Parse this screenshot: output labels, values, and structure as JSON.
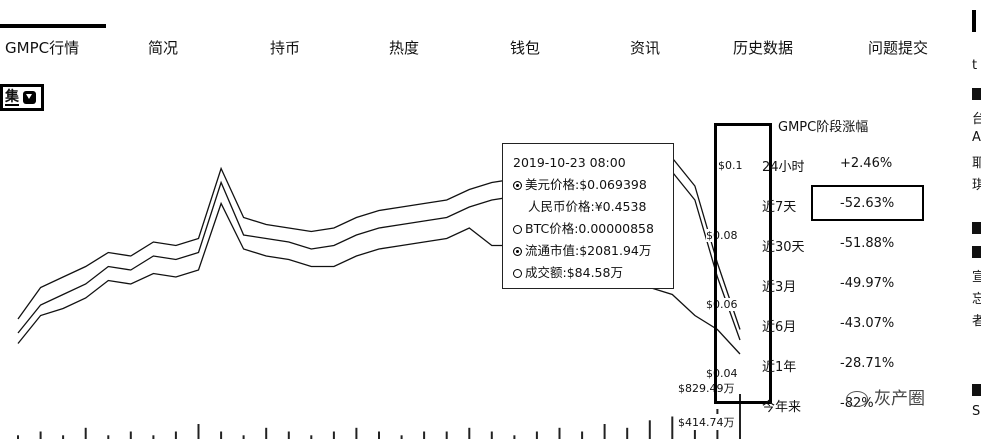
{
  "tabs": [
    "GMPC行情",
    "简况",
    "持币",
    "热度",
    "钱包",
    "资讯",
    "历史数据",
    "问题提交"
  ],
  "selector": {
    "label": "集"
  },
  "tooltip": {
    "date": "2019-10-23 08:00",
    "rows": [
      {
        "text": "美元价格:$0.069398",
        "marker": "filled"
      },
      {
        "text": "人民币价格:¥0.4538",
        "marker": "none"
      },
      {
        "text": "BTC价格:0.00000858",
        "marker": "hollow"
      },
      {
        "text": "流通市值:$2081.94万",
        "marker": "filled"
      },
      {
        "text": "成交额:$84.58万",
        "marker": "hollow"
      }
    ]
  },
  "y_axis": {
    "price_ticks": [
      "$0.1",
      "$0.08",
      "$0.06",
      "$0.04"
    ],
    "volume_ticks": [
      "$829.49万",
      "$414.74万"
    ]
  },
  "stats": {
    "title": "GMPC阶段涨幅",
    "rows": [
      {
        "label": "24小时",
        "value": "+2.46%"
      },
      {
        "label": "近7天",
        "value": "-52.63%"
      },
      {
        "label": "近30天",
        "value": "-51.88%"
      },
      {
        "label": "近3月",
        "value": "-49.97%"
      },
      {
        "label": "近6月",
        "value": "-43.07%"
      },
      {
        "label": "近1年",
        "value": "-28.71%"
      },
      {
        "label": "今年来",
        "value": "-82%"
      }
    ]
  },
  "watermark": "灰产圈",
  "sidebar_glyphs": [
    "t",
    "台",
    "A",
    "耶",
    "琪",
    "宣",
    "忘",
    "者",
    "S"
  ],
  "chart_data": {
    "type": "line",
    "title": "",
    "series": [
      {
        "values": [
          0.047,
          0.055,
          0.058,
          0.061,
          0.066,
          0.065,
          0.069,
          0.068,
          0.07,
          0.09,
          0.075,
          0.074,
          0.073,
          0.071,
          0.072,
          0.075,
          0.077,
          0.078,
          0.079,
          0.08,
          0.083,
          0.085,
          0.086,
          0.088,
          0.089,
          0.092,
          0.095,
          0.096,
          0.096,
          0.093,
          0.085,
          0.063,
          0.045
        ]
      },
      {
        "values": [
          0.051,
          0.06,
          0.063,
          0.066,
          0.07,
          0.069,
          0.073,
          0.072,
          0.074,
          0.094,
          0.08,
          0.078,
          0.077,
          0.076,
          0.077,
          0.08,
          0.082,
          0.083,
          0.084,
          0.085,
          0.088,
          0.09,
          0.091,
          0.093,
          0.094,
          0.097,
          0.099,
          0.1,
          0.1,
          0.097,
          0.089,
          0.067,
          0.048
        ]
      },
      {
        "values": [
          0.044,
          0.052,
          0.054,
          0.057,
          0.062,
          0.061,
          0.064,
          0.063,
          0.065,
          0.084,
          0.071,
          0.069,
          0.068,
          0.066,
          0.066,
          0.069,
          0.071,
          0.072,
          0.073,
          0.074,
          0.077,
          0.072,
          0.072,
          0.074,
          0.073,
          0.068,
          0.065,
          0.062,
          0.06,
          0.058,
          0.052,
          0.048,
          0.041
        ]
      }
    ],
    "volume": [
      1,
      2,
      1,
      3,
      1,
      2,
      1,
      2,
      4,
      2,
      1,
      3,
      2,
      1,
      2,
      3,
      2,
      1,
      2,
      2,
      3,
      2,
      1,
      2,
      3,
      2,
      4,
      3,
      5,
      6,
      4,
      8,
      12
    ],
    "ylim": [
      0.035,
      0.105
    ]
  }
}
